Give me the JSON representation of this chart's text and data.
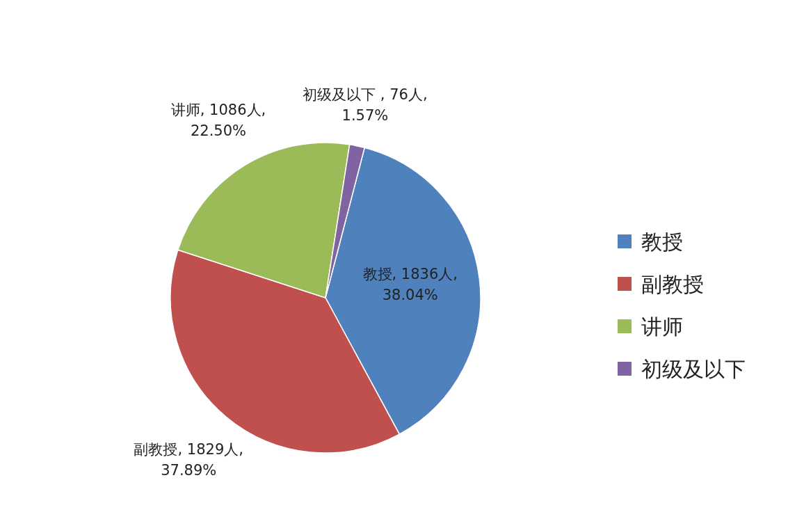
{
  "chart_data": {
    "type": "pie",
    "categories": [
      "教授",
      "副教授",
      "讲师",
      "初级及以下"
    ],
    "values": [
      38.04,
      37.89,
      22.5,
      1.57
    ],
    "colors": [
      "#4f81bd",
      "#c0504d",
      "#9bbb59",
      "#8064a2"
    ],
    "value_labels": [
      "教授, 1836人, 38.04%",
      "副教授, 1829人, 37.89%",
      "讲师, 1086人, 22.50%",
      "初级及以下 , 76人, 1.57%"
    ],
    "legend": "right"
  }
}
